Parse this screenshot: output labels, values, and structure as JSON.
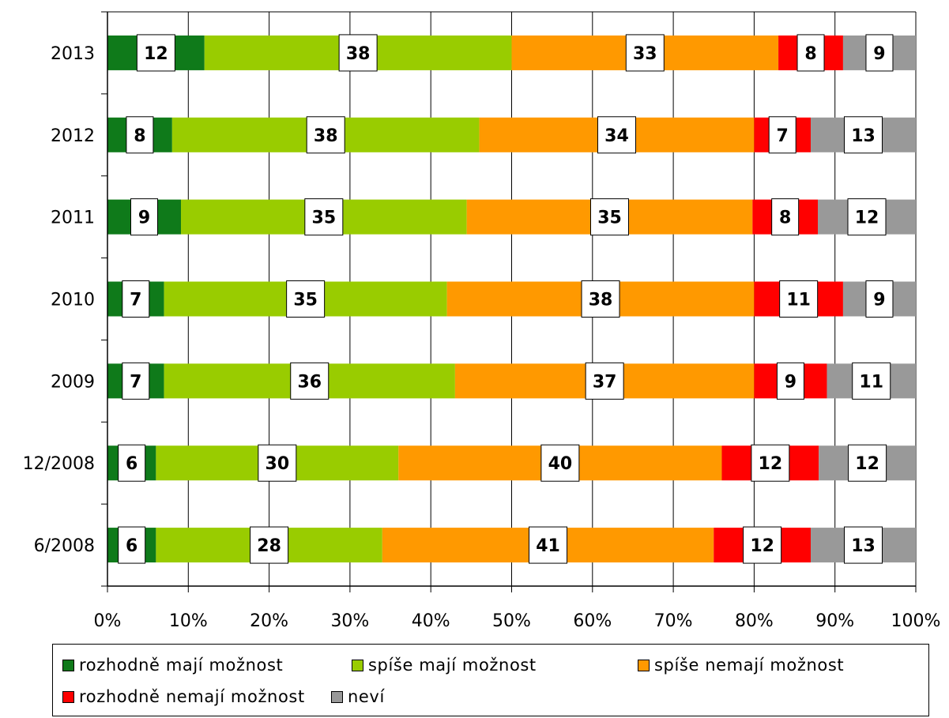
{
  "chart_data": {
    "type": "bar",
    "orientation": "horizontal",
    "stacked": "percent",
    "categories": [
      "2013",
      "2012",
      "2011",
      "2010",
      "2009",
      "12/2008",
      "6/2008"
    ],
    "series": [
      {
        "name": "rozhodně mají možnost",
        "color": "#0F7A1A",
        "values": [
          12,
          8,
          9,
          7,
          7,
          6,
          6
        ]
      },
      {
        "name": "spíše mají možnost",
        "color": "#99CC00",
        "values": [
          38,
          38,
          35,
          35,
          36,
          30,
          28
        ]
      },
      {
        "name": "spíše nemají možnost",
        "color": "#FF9900",
        "values": [
          33,
          34,
          35,
          38,
          37,
          40,
          41
        ]
      },
      {
        "name": "rozhodně nemají možnost",
        "color": "#FF0000",
        "values": [
          8,
          7,
          8,
          11,
          9,
          12,
          12
        ]
      },
      {
        "name": "neví",
        "color": "#999999",
        "values": [
          9,
          13,
          12,
          9,
          11,
          12,
          13
        ]
      }
    ],
    "x_ticks": [
      "0%",
      "10%",
      "20%",
      "30%",
      "40%",
      "50%",
      "60%",
      "70%",
      "80%",
      "90%",
      "100%"
    ],
    "xlim": [
      0,
      100
    ],
    "grid": "vertical",
    "legend_position": "bottom",
    "data_labels": true
  }
}
